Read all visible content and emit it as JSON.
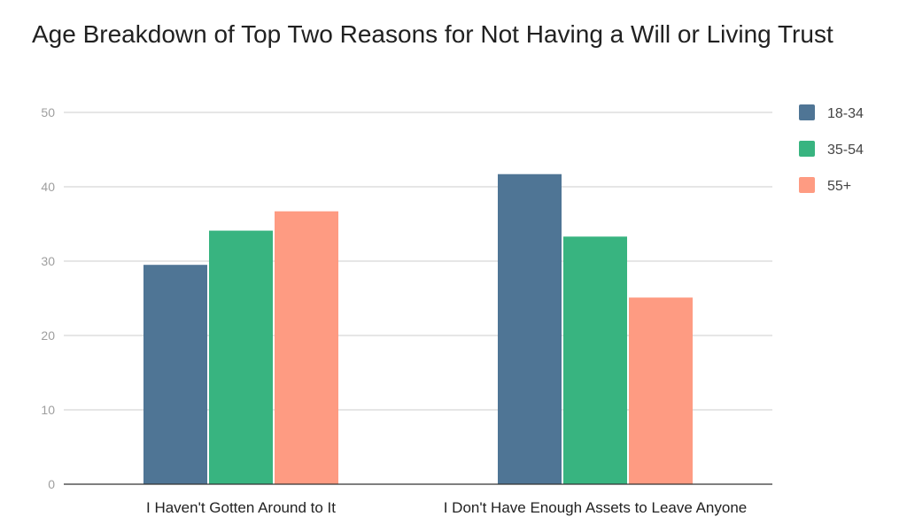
{
  "chart_data": {
    "type": "bar",
    "title": "Age Breakdown of Top Two Reasons for Not Having a Will or Living Trust",
    "xlabel": "",
    "ylabel": "",
    "categories": [
      "I Haven't Gotten Around to It",
      "I Don't Have Enough Assets to Leave Anyone"
    ],
    "series": [
      {
        "name": "18-34",
        "values": [
          29.5,
          41.7
        ],
        "color": "#4f7595"
      },
      {
        "name": "35-54",
        "values": [
          34.1,
          33.3
        ],
        "color": "#38b480"
      },
      {
        "name": "55+",
        "values": [
          36.7,
          25.1
        ],
        "color": "#fe9b82"
      }
    ],
    "ylim": [
      0,
      50
    ],
    "yticks": [
      0,
      10,
      20,
      30,
      40,
      50
    ],
    "grid": true,
    "legend": "right"
  }
}
